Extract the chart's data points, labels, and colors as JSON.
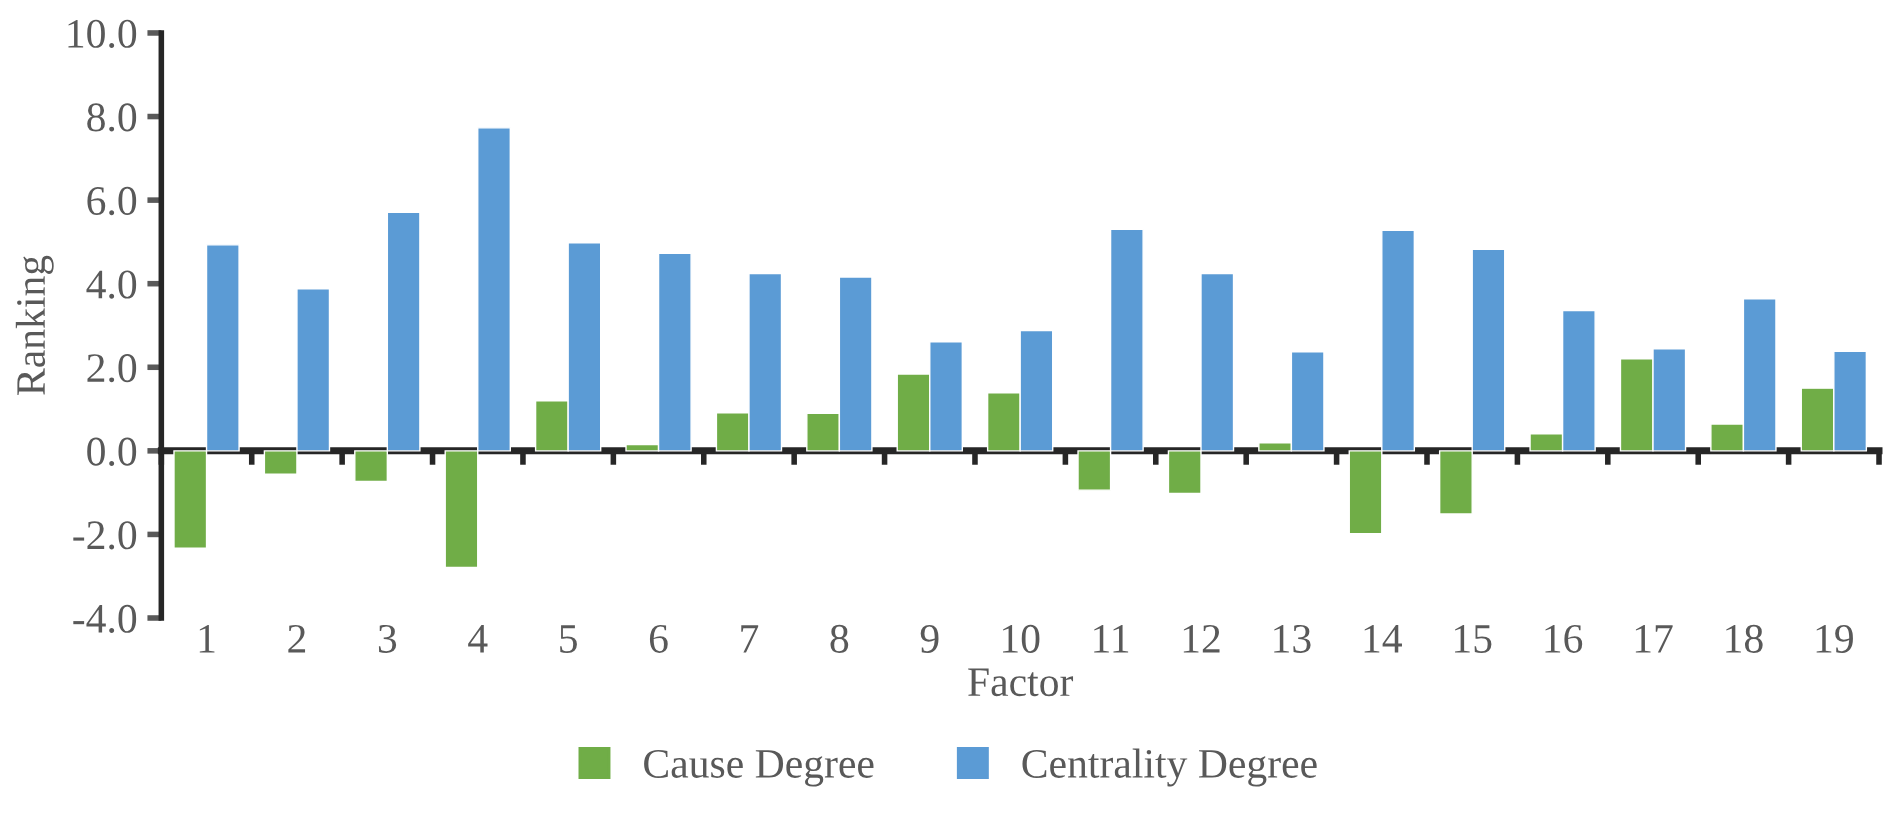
{
  "chart_data": {
    "type": "bar",
    "xlabel": "Factor",
    "ylabel": "Ranking",
    "categories": [
      "1",
      "2",
      "3",
      "4",
      "5",
      "6",
      "7",
      "8",
      "9",
      "10",
      "11",
      "12",
      "13",
      "14",
      "15",
      "16",
      "17",
      "18",
      "19"
    ],
    "series": [
      {
        "name": "Cause Degree",
        "color": "#70ad47",
        "values": [
          -2.33,
          -0.56,
          -0.73,
          -2.79,
          1.2,
          0.15,
          0.91,
          0.9,
          1.84,
          1.39,
          -0.94,
          -1.02,
          0.19,
          -1.98,
          -1.51,
          0.41,
          2.2,
          0.64,
          1.5
        ]
      },
      {
        "name": "Centrality Degree",
        "color": "#5b9bd5",
        "values": [
          4.93,
          3.88,
          5.71,
          7.73,
          4.98,
          4.73,
          4.24,
          4.16,
          2.61,
          2.88,
          5.3,
          4.24,
          2.37,
          5.28,
          4.82,
          3.36,
          2.44,
          3.64,
          2.38
        ]
      }
    ],
    "ylim": [
      -4,
      10
    ],
    "yticks": [
      {
        "value": -4,
        "label": "-4.0"
      },
      {
        "value": -2,
        "label": "-2.0"
      },
      {
        "value": 0,
        "label": "0.0"
      },
      {
        "value": 2,
        "label": "2.0"
      },
      {
        "value": 4,
        "label": "4.0"
      },
      {
        "value": 6,
        "label": "6.0"
      },
      {
        "value": 8,
        "label": "8.0"
      },
      {
        "value": 10,
        "label": "10.0"
      }
    ],
    "legend": "bottom"
  }
}
